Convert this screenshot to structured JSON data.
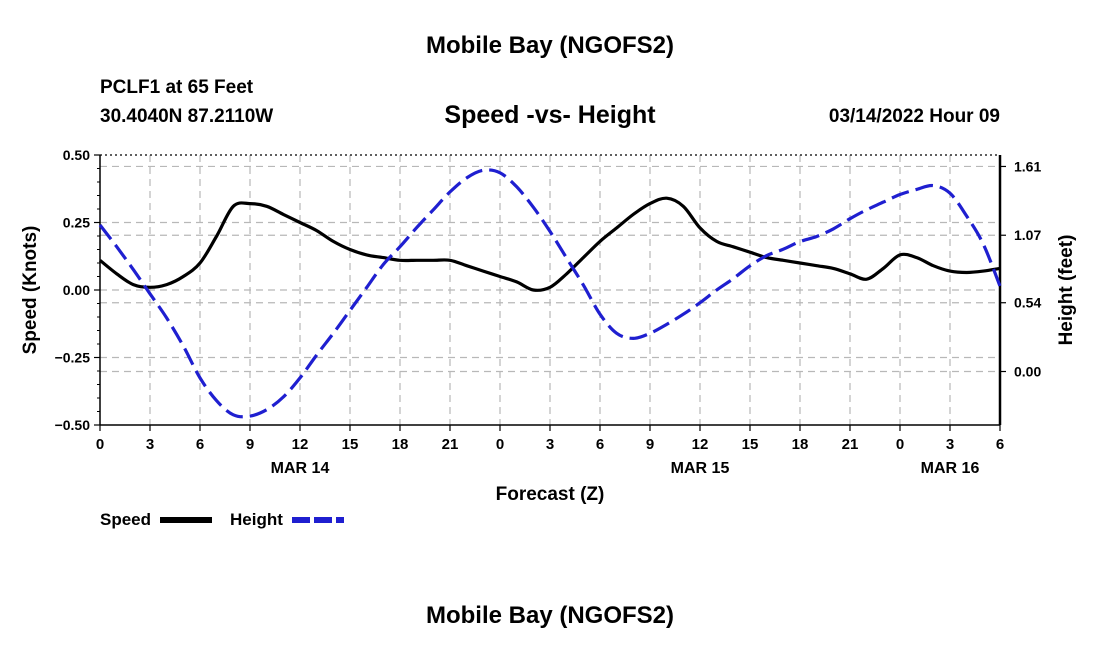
{
  "page": {
    "title": "Mobile Bay (NGOFS2)",
    "station": "PCLF1 at 65 Feet",
    "location": "30.4040N  87.2110W",
    "timestamp": "03/14/2022 Hour 09",
    "footer_title": "Mobile Bay (NGOFS2)"
  },
  "chart_data": {
    "type": "line",
    "title": "Speed -vs- Height",
    "xlabel": "Forecast (Z)",
    "ylabel_left": "Speed (Knots)",
    "ylabel_right": "Height (feet)",
    "x_unit": "hours after 00Z MAR 14",
    "x_range": [
      0,
      54
    ],
    "x_ticks": [
      0,
      3,
      6,
      9,
      12,
      15,
      18,
      21,
      24,
      27,
      30,
      33,
      36,
      39,
      42,
      45,
      48,
      51,
      54
    ],
    "x_tick_labels": [
      "0",
      "3",
      "6",
      "9",
      "12",
      "15",
      "18",
      "21",
      "0",
      "3",
      "6",
      "9",
      "12",
      "15",
      "18",
      "21",
      "0",
      "3",
      "6"
    ],
    "date_labels": [
      {
        "x": 12,
        "label": "MAR 14"
      },
      {
        "x": 36,
        "label": "MAR 15"
      },
      {
        "x": 51,
        "label": "MAR 16"
      }
    ],
    "y_left_range": [
      -0.5,
      0.5
    ],
    "y_left_ticks": [
      -0.5,
      -0.25,
      0,
      0.25,
      0.5
    ],
    "y_left_tick_labels": [
      "−0.50",
      "−0.25",
      "0.00",
      "0.25",
      "0.50"
    ],
    "y_right_range": [
      -0.42,
      1.7
    ],
    "y_right_ticks": [
      0.0,
      0.54,
      1.07,
      1.61
    ],
    "y_right_tick_labels": [
      "0.00",
      "0.54",
      "1.07",
      "1.61"
    ],
    "grid": true,
    "legend_position": "bottom-left",
    "series": [
      {
        "name": "Speed",
        "axis": "left",
        "color": "#000000",
        "style": "solid",
        "x": [
          0,
          1,
          2,
          3,
          4,
          5,
          6,
          7,
          8,
          9,
          10,
          11,
          12,
          13,
          14,
          15,
          16,
          17,
          18,
          19,
          20,
          21,
          22,
          23,
          24,
          25,
          26,
          27,
          28,
          29,
          30,
          31,
          32,
          33,
          34,
          35,
          36,
          37,
          38,
          39,
          40,
          41,
          42,
          43,
          44,
          45,
          46,
          47,
          48,
          49,
          50,
          51,
          52,
          53,
          54
        ],
        "values": [
          0.11,
          0.06,
          0.02,
          0.01,
          0.02,
          0.05,
          0.1,
          0.2,
          0.31,
          0.32,
          0.31,
          0.28,
          0.25,
          0.22,
          0.18,
          0.15,
          0.13,
          0.12,
          0.11,
          0.11,
          0.11,
          0.11,
          0.09,
          0.07,
          0.05,
          0.03,
          0.0,
          0.01,
          0.06,
          0.12,
          0.18,
          0.23,
          0.28,
          0.32,
          0.34,
          0.31,
          0.23,
          0.18,
          0.16,
          0.14,
          0.12,
          0.11,
          0.1,
          0.09,
          0.08,
          0.06,
          0.04,
          0.08,
          0.13,
          0.12,
          0.09,
          0.07,
          0.065,
          0.07,
          0.08
        ]
      },
      {
        "name": "Height",
        "axis": "right",
        "color": "#1f1fd0",
        "style": "dashed",
        "x": [
          0,
          1,
          2,
          3,
          4,
          5,
          6,
          7,
          8,
          9,
          10,
          11,
          12,
          13,
          14,
          15,
          16,
          17,
          18,
          19,
          20,
          21,
          22,
          23,
          24,
          25,
          26,
          27,
          28,
          29,
          30,
          31,
          32,
          33,
          34,
          35,
          36,
          37,
          38,
          39,
          40,
          41,
          42,
          43,
          44,
          45,
          46,
          47,
          48,
          49,
          50,
          51,
          52,
          53,
          54
        ],
        "values": [
          1.15,
          0.98,
          0.8,
          0.61,
          0.42,
          0.2,
          -0.05,
          -0.23,
          -0.34,
          -0.35,
          -0.3,
          -0.2,
          -0.05,
          0.13,
          0.3,
          0.48,
          0.66,
          0.84,
          0.98,
          1.13,
          1.27,
          1.41,
          1.52,
          1.58,
          1.56,
          1.45,
          1.29,
          1.1,
          0.89,
          0.68,
          0.45,
          0.3,
          0.26,
          0.3,
          0.37,
          0.45,
          0.54,
          0.64,
          0.73,
          0.83,
          0.91,
          0.96,
          1.02,
          1.06,
          1.12,
          1.2,
          1.27,
          1.33,
          1.39,
          1.43,
          1.46,
          1.4,
          1.22,
          1.0,
          0.67
        ]
      }
    ]
  },
  "legend": {
    "speed_label": "Speed",
    "height_label": "Height",
    "speed_color": "#000000",
    "height_color": "#1f1fd0"
  }
}
